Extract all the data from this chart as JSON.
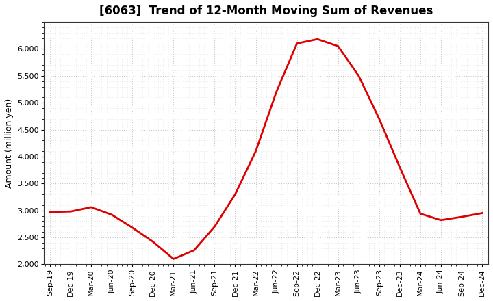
{
  "title": "[6063]  Trend of 12-Month Moving Sum of Revenues",
  "ylabel": "Amount (million yen)",
  "line_color": "#dd0000",
  "background_color": "#ffffff",
  "ylim": [
    2000,
    6500
  ],
  "yticks": [
    2000,
    2500,
    3000,
    3500,
    4000,
    4500,
    5000,
    5500,
    6000
  ],
  "x_labels": [
    "Sep-19",
    "Dec-19",
    "Mar-20",
    "Jun-20",
    "Sep-20",
    "Dec-20",
    "Mar-21",
    "Jun-21",
    "Sep-21",
    "Dec-21",
    "Mar-22",
    "Jun-22",
    "Sep-22",
    "Dec-22",
    "Mar-23",
    "Jun-23",
    "Sep-23",
    "Dec-23",
    "Mar-24",
    "Jun-24",
    "Sep-24",
    "Dec-24"
  ],
  "values": [
    2970,
    2980,
    3060,
    2920,
    2680,
    2420,
    2100,
    2260,
    2700,
    3300,
    4100,
    5200,
    6100,
    6180,
    6050,
    5500,
    4700,
    3800,
    2940,
    2820,
    2880,
    2950
  ]
}
